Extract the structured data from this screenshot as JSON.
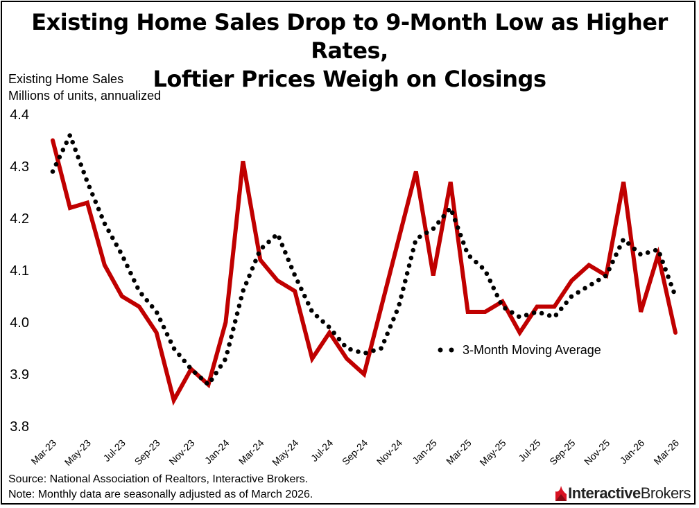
{
  "title_line1": "Existing Home Sales Drop to 9-Month Low as Higher Rates,",
  "title_line2": "Loftier Prices Weigh on Closings",
  "source": "Source: National Association of Realtors, Interactive Brokers.",
  "note": "Note: Monthly data are seasonally adjusted as of March 2026.",
  "logo_text": {
    "part1": "Interactive",
    "part2": "Brokers"
  },
  "colors": {
    "sales_line": "#c00000",
    "moving_average": "#000000",
    "logo_red": "#d81222"
  },
  "chart_data": {
    "type": "line",
    "title": "Existing Home Sales Drop to 9-Month Low as Higher Rates, Loftier Prices Weigh on Closings",
    "ylabel_line1": "Existing Home Sales",
    "ylabel_line2": "Millions of units, annualized",
    "ylim": [
      3.8,
      4.4
    ],
    "yticks": [
      "3.8",
      "3.9",
      "4.0",
      "4.1",
      "4.2",
      "4.3",
      "4.4"
    ],
    "grid": false,
    "legend_placement": "center-right",
    "x": [
      "Mar-23",
      "Apr-23",
      "May-23",
      "Jun-23",
      "Jul-23",
      "Aug-23",
      "Sep-23",
      "Oct-23",
      "Nov-23",
      "Dec-23",
      "Jan-24",
      "Feb-24",
      "Mar-24",
      "Apr-24",
      "May-24",
      "Jun-24",
      "Jul-24",
      "Aug-24",
      "Sep-24",
      "Oct-24",
      "Nov-24",
      "Dec-24",
      "Jan-25",
      "Feb-25",
      "Mar-25",
      "Apr-25",
      "May-25",
      "Jun-25",
      "Jul-25",
      "Aug-25",
      "Sep-25",
      "Oct-25",
      "Nov-25",
      "Dec-25",
      "Jan-26",
      "Feb-26",
      "Mar-26"
    ],
    "xticks": [
      "Mar-23",
      "May-23",
      "Jul-23",
      "Sep-23",
      "Nov-23",
      "Jan-24",
      "Mar-24",
      "May-24",
      "Jul-24",
      "Sep-24",
      "Nov-24",
      "Jan-25",
      "Mar-25",
      "May-25",
      "Jul-25",
      "Sep-25",
      "Nov-25",
      "Jan-26",
      "Mar-26"
    ],
    "series": [
      {
        "values": [
          4.35,
          4.22,
          4.23,
          4.11,
          4.05,
          4.03,
          3.98,
          3.85,
          3.91,
          3.88,
          4.0,
          4.31,
          4.12,
          4.08,
          4.06,
          3.93,
          3.98,
          3.93,
          3.9,
          4.03,
          4.16,
          4.29,
          4.09,
          4.27,
          4.02,
          4.02,
          4.04,
          3.98,
          4.03,
          4.03,
          4.08,
          4.11,
          4.09,
          4.27,
          4.02,
          4.13,
          3.98
        ]
      },
      {
        "name": "3-Month Moving Average",
        "values": [
          4.29,
          4.36,
          4.27,
          4.19,
          4.13,
          4.06,
          4.02,
          3.95,
          3.91,
          3.88,
          3.93,
          4.06,
          4.14,
          4.17,
          4.09,
          4.02,
          3.99,
          3.95,
          3.94,
          3.95,
          4.03,
          4.16,
          4.18,
          4.22,
          4.13,
          4.1,
          4.03,
          4.01,
          4.02,
          4.01,
          4.05,
          4.07,
          4.09,
          4.16,
          4.13,
          4.14,
          4.05
        ]
      }
    ]
  }
}
